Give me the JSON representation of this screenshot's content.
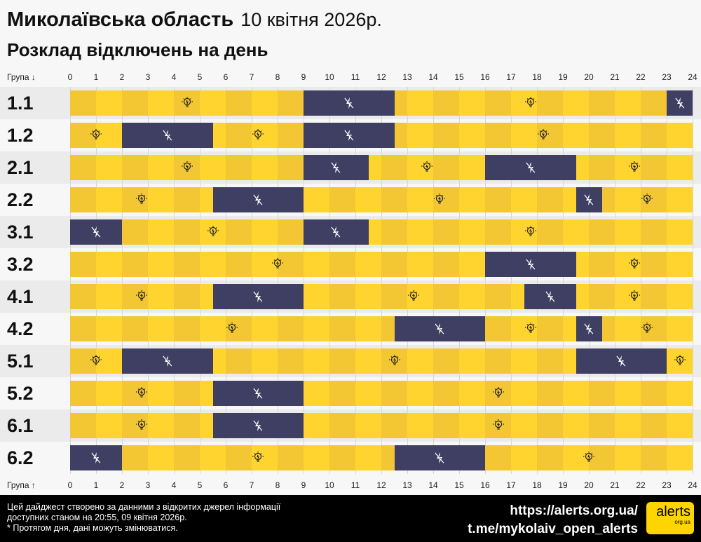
{
  "header": {
    "title": "Миколаївська область",
    "date": "10 квітня 2026р.",
    "subtitle": "Розклад відключень на день"
  },
  "colors": {
    "on": "#ffd42e",
    "on_alt": "#f2c733",
    "off": "#3f3f63",
    "row_bg": "#ebebeb",
    "row_bg_alt": "#f7f7f7"
  },
  "axis": {
    "top_label": "Група ↓",
    "bottom_label": "Група ↑"
  },
  "chart_data": {
    "type": "timeline",
    "xlim": [
      0,
      24
    ],
    "ticks": [
      "0",
      "1",
      "2",
      "3",
      "4",
      "5",
      "6",
      "7",
      "8",
      "9",
      "10",
      "11",
      "12",
      "13",
      "14",
      "15",
      "16",
      "17",
      "18",
      "19",
      "20",
      "21",
      "22",
      "23",
      "24"
    ],
    "legend_icons": {
      "on": "lightbulb-icon",
      "off": "power-off-icon"
    },
    "groups": [
      {
        "name": "1.1",
        "outages": [
          [
            9,
            12.5
          ],
          [
            23,
            24
          ]
        ]
      },
      {
        "name": "1.2",
        "outages": [
          [
            2,
            5.5
          ],
          [
            9,
            12.5
          ]
        ]
      },
      {
        "name": "2.1",
        "outages": [
          [
            9,
            11.5
          ],
          [
            16,
            19.5
          ]
        ]
      },
      {
        "name": "2.2",
        "outages": [
          [
            5.5,
            9
          ],
          [
            19.5,
            20.5
          ]
        ]
      },
      {
        "name": "3.1",
        "outages": [
          [
            0,
            2
          ],
          [
            9,
            11.5
          ]
        ]
      },
      {
        "name": "3.2",
        "outages": [
          [
            16,
            19.5
          ]
        ]
      },
      {
        "name": "4.1",
        "outages": [
          [
            5.5,
            9
          ],
          [
            17.5,
            19.5
          ]
        ]
      },
      {
        "name": "4.2",
        "outages": [
          [
            12.5,
            16
          ],
          [
            19.5,
            20.5
          ]
        ]
      },
      {
        "name": "5.1",
        "outages": [
          [
            2,
            5.5
          ],
          [
            19.5,
            23
          ]
        ]
      },
      {
        "name": "5.2",
        "outages": [
          [
            5.5,
            9
          ]
        ]
      },
      {
        "name": "6.1",
        "outages": [
          [
            5.5,
            9
          ]
        ]
      },
      {
        "name": "6.2",
        "outages": [
          [
            0,
            2
          ],
          [
            12.5,
            16
          ]
        ]
      }
    ]
  },
  "footer": {
    "note1": "Цей дайджест створено за данними з відкритих джерел інформації",
    "note2": "доступних станом на 20:55, 09 квітня 2026р.",
    "note3": "* Протягом дня, дані можуть змінюватися.",
    "link1": "https://alerts.org.ua/",
    "link2": "t.me/mykolaiv_open_alerts",
    "logo_main": "alerts",
    "logo_sub": "org.ua"
  }
}
